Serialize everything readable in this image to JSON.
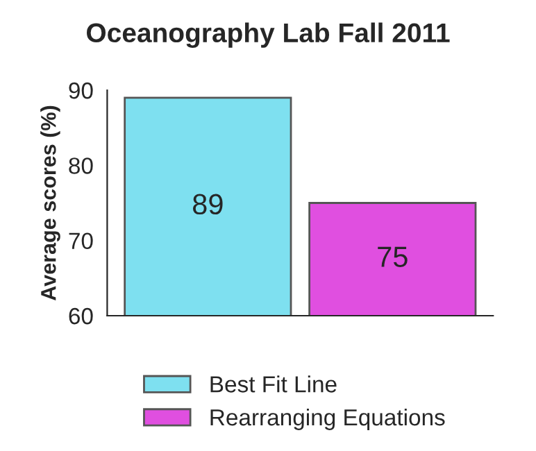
{
  "chart_data": {
    "type": "bar",
    "title": "Oceanography Lab Fall 2011",
    "ylabel": "Average scores (%)",
    "categories": [
      null
    ],
    "series": [
      {
        "name": "Best Fit Line",
        "color": "#7ee0f0",
        "values": [
          89
        ]
      },
      {
        "name": "Rearranging Equations",
        "color": "#e04fe0",
        "values": [
          75
        ]
      }
    ],
    "ylim": [
      60,
      90
    ],
    "yticks": [
      60,
      70,
      80,
      90
    ],
    "data_labels": true,
    "legend": "bottom",
    "grid": false
  }
}
